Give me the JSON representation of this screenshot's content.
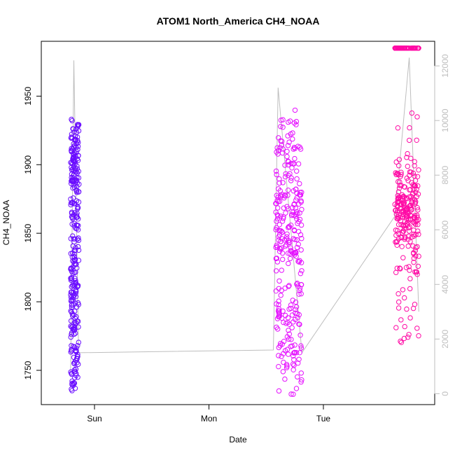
{
  "chart_data": {
    "type": "scatter",
    "title": "ATOM1 North_America CH4_NOAA",
    "xlabel": "Date",
    "ylabel": "CH4_NOAA",
    "x_range_hours_labels": [
      "Sun",
      "Mon",
      "Tue"
    ],
    "x_ticks": [
      {
        "label": "Sun",
        "value": "Sun 00:00"
      },
      {
        "label": "Mon",
        "value": "Mon 00:00"
      },
      {
        "label": "Tue",
        "value": "Tue 00:00"
      }
    ],
    "ylim": [
      1725,
      1990
    ],
    "y_ticks": [
      1750,
      1800,
      1850,
      1900,
      1950
    ],
    "y2_label": "",
    "y2lim": [
      -400,
      12900
    ],
    "y2_ticks": [
      0,
      2000,
      4000,
      6000,
      8000,
      10000,
      12000
    ],
    "y2_color": "#bebebe",
    "grid": false,
    "series": [
      {
        "flight": 1,
        "color": "#6a0dff",
        "x_range": [
          "Sat 19:00",
          "Sat 20:45"
        ],
        "y_ranges": [
          [
            1732,
            1935
          ],
          [
            1735,
            1920
          ],
          [
            1740,
            1912
          ],
          [
            1745,
            1905
          ],
          [
            1880,
            1930
          ]
        ]
      },
      {
        "flight": 2,
        "color": "#e510ff",
        "x_range": [
          "Mon 14:00",
          "Mon 19:30"
        ],
        "y_ranges": [
          [
            1732,
            1925
          ],
          [
            1740,
            1935
          ],
          [
            1750,
            1920
          ],
          [
            1760,
            1944
          ],
          [
            1830,
            1880
          ]
        ]
      },
      {
        "flight": 3,
        "color": "#ff0aa5",
        "x_range": [
          "Tue 15:00",
          "Tue 20:00"
        ],
        "y_ranges": [
          [
            1840,
            1900
          ],
          [
            1770,
            1940
          ],
          [
            1820,
            1880
          ],
          [
            1860,
            1895
          ],
          [
            1985,
            1985
          ]
        ]
      }
    ],
    "altitude_line": {
      "color": "#bebebe",
      "points": [
        {
          "x": "Sat 19:00",
          "y2": 800
        },
        {
          "x": "Sat 19:40",
          "y2": 12200
        },
        {
          "x": "Sat 20:40",
          "y2": 1500
        },
        {
          "x": "Mon 13:30",
          "y2": 1600
        },
        {
          "x": "Mon 14:30",
          "y2": 11200
        },
        {
          "x": "Mon 19:30",
          "y2": 1500
        },
        {
          "x": "Tue 15:00",
          "y2": 6500
        },
        {
          "x": "Tue 18:00",
          "y2": 12300
        },
        {
          "x": "Tue 20:00",
          "y2": 3000
        }
      ]
    }
  }
}
